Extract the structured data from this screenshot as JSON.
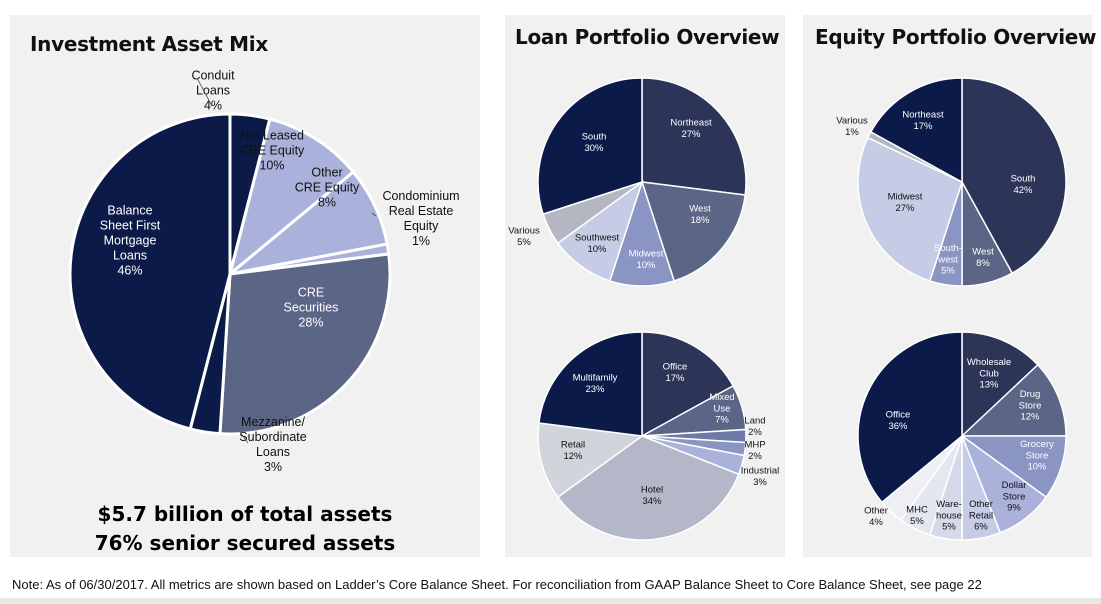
{
  "colors": {
    "panel": "#f1f1f1",
    "navy": "#0c1a4a",
    "slate": "#2c3557",
    "steel": "#5b6585",
    "periwinkle": "#8a95c4",
    "lavender": "#aab2dc",
    "light": "#c6cbe6",
    "grey": "#b4b7c2"
  },
  "summary": {
    "line1": "$5.7 billion of total assets",
    "line2": "76% senior secured assets"
  },
  "note": "Note: As of 06/30/2017. All metrics are shown based on Ladder’s Core Balance Sheet.  For reconciliation from GAAP Balance Sheet to Core Balance Sheet, see page 22",
  "chart_data": [
    {
      "type": "pie",
      "title": "Investment Asset Mix",
      "slices": [
        {
          "label": "Conduit Loans",
          "value": 4,
          "color": "#0c1a4a"
        },
        {
          "label": "Net Leased CRE Equity",
          "value": 10,
          "color": "#aab2dc"
        },
        {
          "label": "Other CRE Equity",
          "value": 8,
          "color": "#aab2dc"
        },
        {
          "label": "Condominium Real Estate Equity",
          "value": 1,
          "color": "#aab2dc"
        },
        {
          "label": "CRE Securities",
          "value": 28,
          "color": "#5b6585"
        },
        {
          "label": "Mezzanine/ Subordinate Loans",
          "value": 3,
          "color": "#0c1a4a"
        },
        {
          "label": "Balance Sheet First Mortgage Loans",
          "value": 46,
          "color": "#0c1a4a"
        }
      ]
    },
    {
      "type": "pie",
      "title": "Loan Portfolio Overview",
      "slices": [
        {
          "label": "Northeast",
          "value": 27,
          "color": "#2c3557"
        },
        {
          "label": "West",
          "value": 18,
          "color": "#5b6585"
        },
        {
          "label": "Midwest",
          "value": 10,
          "color": "#8a95c4"
        },
        {
          "label": "Southwest",
          "value": 10,
          "color": "#c6cbe6"
        },
        {
          "label": "Various",
          "value": 5,
          "color": "#b4b7c2"
        },
        {
          "label": "South",
          "value": 30,
          "color": "#0c1a4a"
        }
      ]
    },
    {
      "type": "pie",
      "slices": [
        {
          "label": "Office",
          "value": 17,
          "color": "#2c3557"
        },
        {
          "label": "Mixed Use",
          "value": 7,
          "color": "#5b6585"
        },
        {
          "label": "Land",
          "value": 2,
          "color": "#6e7aa8"
        },
        {
          "label": "MHP",
          "value": 2,
          "color": "#8a95c4"
        },
        {
          "label": "Industrial",
          "value": 3,
          "color": "#aab2dc"
        },
        {
          "label": "Hotel",
          "value": 34,
          "color": "#b4b7c8"
        },
        {
          "label": "Retail",
          "value": 12,
          "color": "#d2d4dc"
        },
        {
          "label": "Multifamily",
          "value": 23,
          "color": "#0c1a4a"
        }
      ]
    },
    {
      "type": "pie",
      "title": "Equity Portfolio Overview",
      "slices": [
        {
          "label": "South",
          "value": 42,
          "color": "#2c3557"
        },
        {
          "label": "West",
          "value": 8,
          "color": "#5b6585"
        },
        {
          "label": "South-west",
          "value": 5,
          "color": "#8a95c4"
        },
        {
          "label": "Midwest",
          "value": 27,
          "color": "#c6cbe6"
        },
        {
          "label": "Various",
          "value": 1,
          "color": "#b4b7c2"
        },
        {
          "label": "Northeast",
          "value": 17,
          "color": "#0c1a4a"
        }
      ]
    },
    {
      "type": "pie",
      "slices": [
        {
          "label": "Wholesale Club",
          "value": 13,
          "color": "#2c3557"
        },
        {
          "label": "Drug Store",
          "value": 12,
          "color": "#5b6585"
        },
        {
          "label": "Grocery Store",
          "value": 10,
          "color": "#8a95c4"
        },
        {
          "label": "Dollar Store",
          "value": 9,
          "color": "#aab2dc"
        },
        {
          "label": "Other Retail",
          "value": 6,
          "color": "#c6cbe6"
        },
        {
          "label": "Ware-house",
          "value": 5,
          "color": "#d6d9ea"
        },
        {
          "label": "MHC",
          "value": 5,
          "color": "#e4e6f0"
        },
        {
          "label": "Other",
          "value": 4,
          "color": "#eeeff4"
        },
        {
          "label": "Office",
          "value": 36,
          "color": "#0c1a4a"
        }
      ]
    }
  ]
}
